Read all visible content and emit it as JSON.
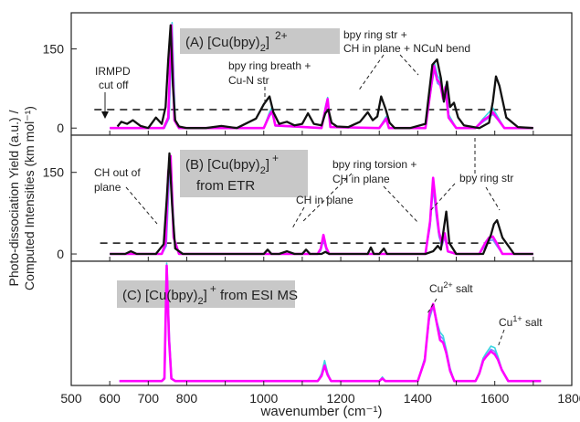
{
  "chart_data": {
    "type": "line",
    "xlabel": "wavenumber (cm⁻¹)",
    "ylabel_line1": "Photo-dissociation Yield (a.u.) /",
    "ylabel_line2": "Computed Intensities (km mol⁻¹)",
    "xlim": [
      500,
      1800
    ],
    "xticks": [
      500,
      600,
      700,
      800,
      1000,
      1200,
      1400,
      1600,
      1800
    ],
    "legend": "none",
    "series_colors": {
      "experiment": "#111111",
      "computed_a": "#ff00ff",
      "computed_b": "#3ad6e0",
      "computed_c": "#7a8cff"
    },
    "panels": [
      {
        "id": "A",
        "label_prefix": "(A) [Cu(bpy)",
        "label_sub": "2",
        "label_suffix": "]",
        "label_sup": "2+",
        "label_line2": "",
        "yticks": [
          0,
          150
        ],
        "ylim": [
          -10,
          215
        ],
        "cutoff_y": 35,
        "cutoff_x": [
          560,
          1650
        ],
        "x_range": [
          600,
          1700
        ],
        "series": [
          {
            "key": "experiment",
            "x": [
              620,
              630,
              645,
              660,
              680,
              700,
              720,
              735,
              745,
              752,
              758,
              764,
              770,
              780,
              800,
              850,
              890,
              930,
              980,
              1000,
              1015,
              1025,
              1040,
              1060,
              1080,
              1100,
              1115,
              1130,
              1150,
              1160,
              1168,
              1176,
              1190,
              1220,
              1250,
              1270,
              1283,
              1295,
              1305,
              1317,
              1327,
              1340,
              1380,
              1420,
              1438,
              1450,
              1460,
              1468,
              1476,
              1484,
              1494,
              1505,
              1520,
              1560,
              1585,
              1595,
              1603,
              1612,
              1630,
              1660,
              1700
            ],
            "y": [
              3,
              12,
              8,
              15,
              4,
              0,
              20,
              8,
              40,
              130,
              195,
              80,
              15,
              3,
              0,
              0,
              4,
              0,
              18,
              45,
              60,
              30,
              8,
              12,
              5,
              8,
              28,
              8,
              5,
              28,
              35,
              10,
              3,
              2,
              12,
              30,
              15,
              22,
              60,
              35,
              10,
              0,
              0,
              8,
              120,
              130,
              95,
              50,
              88,
              40,
              48,
              20,
              5,
              0,
              10,
              50,
              98,
              80,
              20,
              2,
              0
            ]
          },
          {
            "key": "computed_a",
            "x": [
              600,
              740,
              752,
              760,
              768,
              780,
              1000,
              1015,
              1022,
              1030,
              1150,
              1160,
              1166,
              1173,
              1300,
              1312,
              1318,
              1325,
              1420,
              1435,
              1442,
              1450,
              1458,
              1466,
              1472,
              1480,
              1500,
              1550,
              1570,
              1585,
              1595,
              1605,
              1625,
              1700
            ],
            "y": [
              0,
              0,
              20,
              195,
              15,
              0,
              0,
              25,
              32,
              5,
              0,
              35,
              55,
              2,
              0,
              12,
              18,
              0,
              0,
              80,
              118,
              92,
              85,
              55,
              78,
              20,
              0,
              0,
              15,
              22,
              30,
              20,
              0,
              0
            ]
          },
          {
            "key": "computed_b",
            "x": [
              600,
              742,
              754,
              762,
              770,
              780,
              1000,
              1015,
              1022,
              1030,
              1150,
              1160,
              1166,
              1173,
              1300,
              1312,
              1318,
              1325,
              1420,
              1435,
              1443,
              1451,
              1459,
              1467,
              1473,
              1481,
              1500,
              1550,
              1570,
              1585,
              1595,
              1605,
              1625,
              1700
            ],
            "y": [
              0,
              0,
              20,
              200,
              15,
              0,
              0,
              30,
              40,
              5,
              0,
              40,
              58,
              2,
              0,
              15,
              22,
              0,
              0,
              95,
              125,
              100,
              90,
              60,
              82,
              25,
              0,
              0,
              18,
              30,
              38,
              25,
              0,
              0
            ]
          },
          {
            "key": "computed_c",
            "x": [
              600,
              742,
              754,
              762,
              770,
              780,
              1000,
              1015,
              1022,
              1030,
              1150,
              1160,
              1166,
              1173,
              1300,
              1312,
              1318,
              1325,
              1420,
              1435,
              1443,
              1451,
              1459,
              1467,
              1473,
              1481,
              1500,
              1550,
              1570,
              1585,
              1595,
              1605,
              1625,
              1700
            ],
            "y": [
              0,
              0,
              18,
              190,
              12,
              0,
              0,
              22,
              30,
              4,
              0,
              32,
              50,
              2,
              0,
              10,
              16,
              0,
              0,
              75,
              110,
              85,
              80,
              50,
              72,
              18,
              0,
              0,
              12,
              20,
              26,
              18,
              0,
              0
            ]
          }
        ]
      },
      {
        "id": "B",
        "label_prefix": "(B) [Cu(bpy)",
        "label_sub": "2",
        "label_suffix": "]",
        "label_sup": "+",
        "label_line2": "from ETR",
        "yticks": [
          0,
          150
        ],
        "ylim": [
          -10,
          215
        ],
        "cutoff_y": 20,
        "cutoff_x": [
          575,
          1650
        ],
        "x_range": [
          600,
          1700
        ],
        "series": [
          {
            "key": "experiment",
            "x": [
              600,
              640,
              655,
              670,
              720,
              740,
              748,
              755,
              762,
              770,
              790,
              1000,
              1010,
              1020,
              1040,
              1060,
              1080,
              1100,
              1110,
              1120,
              1150,
              1160,
              1170,
              1200,
              1270,
              1278,
              1286,
              1300,
              1312,
              1320,
              1340,
              1420,
              1440,
              1452,
              1460,
              1468,
              1474,
              1482,
              1500,
              1570,
              1590,
              1598,
              1606,
              1620,
              1650,
              1700
            ],
            "y": [
              0,
              0,
              5,
              0,
              0,
              18,
              100,
              185,
              90,
              10,
              0,
              0,
              8,
              0,
              0,
              5,
              0,
              0,
              8,
              0,
              0,
              4,
              0,
              0,
              0,
              12,
              0,
              0,
              10,
              0,
              0,
              0,
              5,
              15,
              8,
              48,
              78,
              20,
              0,
              0,
              35,
              55,
              62,
              30,
              0,
              0
            ]
          },
          {
            "key": "computed_a",
            "x": [
              600,
              735,
              745,
              752,
              758,
              766,
              780,
              1140,
              1148,
              1155,
              1162,
              1170,
              1420,
              1432,
              1440,
              1448,
              1455,
              1463,
              1470,
              1478,
              1500,
              1560,
              1575,
              1585,
              1595,
              1605,
              1620,
              1700
            ],
            "y": [
              0,
              0,
              20,
              150,
              180,
              30,
              0,
              0,
              10,
              35,
              12,
              0,
              0,
              60,
              140,
              85,
              40,
              20,
              38,
              5,
              0,
              0,
              20,
              30,
              32,
              20,
              0,
              0
            ]
          },
          {
            "key": "computed_b",
            "x": [
              600,
              735,
              746,
              753,
              759,
              767,
              780,
              1140,
              1148,
              1155,
              1162,
              1170,
              1420,
              1432,
              1440,
              1448,
              1455,
              1463,
              1470,
              1478,
              1500,
              1560,
              1575,
              1585,
              1595,
              1605,
              1620,
              1700
            ],
            "y": [
              0,
              0,
              18,
              140,
              170,
              28,
              0,
              0,
              8,
              30,
              10,
              0,
              0,
              55,
              130,
              78,
              36,
              18,
              34,
              4,
              0,
              0,
              18,
              28,
              30,
              18,
              0,
              0
            ]
          },
          {
            "key": "computed_c",
            "x": [
              600,
              736,
              747,
              754,
              760,
              768,
              780,
              1140,
              1148,
              1155,
              1162,
              1170,
              1420,
              1432,
              1440,
              1448,
              1455,
              1463,
              1470,
              1478,
              1500,
              1560,
              1575,
              1585,
              1595,
              1605,
              1620,
              1700
            ],
            "y": [
              0,
              0,
              15,
              130,
              160,
              25,
              0,
              0,
              6,
              25,
              8,
              0,
              0,
              50,
              120,
              70,
              32,
              15,
              30,
              4,
              0,
              0,
              15,
              24,
              26,
              15,
              0,
              0
            ]
          }
        ]
      },
      {
        "id": "C",
        "label_prefix": "(C) [Cu(bpy)",
        "label_sub": "2",
        "label_suffix": "]",
        "label_sup": "+",
        "label_after": " from ESI MS",
        "label_line2": "",
        "yticks": [],
        "ylim": [
          -5,
          230
        ],
        "x_range": [
          625,
          1720
        ],
        "series": [
          {
            "key": "computed_a",
            "x": [
              625,
              735,
              742,
              748,
              754,
              760,
              770,
              1140,
              1150,
              1158,
              1166,
              1175,
              1300,
              1308,
              1316,
              1400,
              1418,
              1430,
              1440,
              1450,
              1458,
              1466,
              1474,
              1484,
              1495,
              1550,
              1560,
              1570,
              1578,
              1590,
              1600,
              1608,
              1618,
              1635,
              1720
            ],
            "y": [
              0,
              0,
              5,
              225,
              80,
              5,
              0,
              0,
              10,
              30,
              12,
              0,
              0,
              5,
              0,
              0,
              40,
              130,
              150,
              110,
              80,
              75,
              55,
              20,
              0,
              0,
              15,
              40,
              48,
              58,
              52,
              42,
              22,
              0,
              0
            ]
          },
          {
            "key": "computed_b",
            "x": [
              625,
              735,
              742,
              748,
              754,
              760,
              770,
              1140,
              1150,
              1158,
              1166,
              1175,
              1300,
              1308,
              1316,
              1400,
              1418,
              1430,
              1440,
              1450,
              1458,
              1466,
              1474,
              1484,
              1495,
              1550,
              1560,
              1570,
              1578,
              1590,
              1600,
              1608,
              1618,
              1635,
              1720
            ],
            "y": [
              0,
              0,
              8,
              230,
              90,
              6,
              0,
              0,
              15,
              40,
              16,
              0,
              0,
              8,
              0,
              0,
              45,
              125,
              150,
              115,
              95,
              88,
              62,
              25,
              0,
              0,
              18,
              45,
              55,
              68,
              65,
              48,
              24,
              0,
              0
            ]
          },
          {
            "key": "computed_c",
            "x": [
              625,
              736,
              743,
              749,
              755,
              761,
              771,
              1140,
              1150,
              1158,
              1166,
              1175,
              1300,
              1308,
              1316,
              1400,
              1418,
              1430,
              1440,
              1450,
              1458,
              1466,
              1474,
              1484,
              1495,
              1550,
              1560,
              1570,
              1578,
              1590,
              1600,
              1608,
              1618,
              1635,
              1720
            ],
            "y": [
              0,
              0,
              6,
              220,
              85,
              5,
              0,
              0,
              12,
              35,
              14,
              0,
              0,
              6,
              0,
              0,
              42,
              120,
              145,
              108,
              88,
              82,
              58,
              22,
              0,
              0,
              16,
              42,
              50,
              62,
              58,
              44,
              22,
              0,
              0
            ]
          }
        ]
      }
    ],
    "annotations": {
      "irmpd": "IRMPD",
      "cutoff": "cut off",
      "bpy_breath_1": "bpy ring breath +",
      "bpy_breath_2": "Cu-N str",
      "ring_str_1": "bpy ring str +",
      "ring_str_2": "CH in plane  + NCuN bend",
      "ch_oop_1": "CH out of",
      "ch_oop_2": "plane",
      "torsion_1": "bpy ring torsion +",
      "torsion_2": "CH in plane",
      "ch_inplane": "CH in plane",
      "bpy_ring_str": "bpy ring str",
      "cu2_prefix": "Cu",
      "cu2_sup": "2+",
      "cu2_suffix": " salt",
      "cu1_prefix": "Cu",
      "cu1_sup": "1+",
      "cu1_suffix": " salt"
    }
  }
}
